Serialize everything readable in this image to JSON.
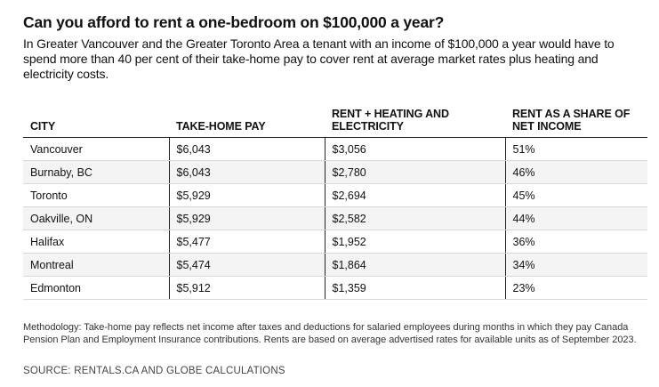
{
  "chart_data": {
    "type": "table",
    "title": "Can you afford to rent a one-bedroom on $100,000 a year?",
    "subtitle": "In Greater Vancouver and the Greater Toronto Area a tenant with an income of $100,000 a year would have to spend more than 40 per cent of their take-home pay to cover rent at average market rates plus heating and electricity costs.",
    "columns": [
      "CITY",
      "TAKE-HOME PAY",
      "RENT + HEATING AND ELECTRICITY",
      "RENT AS A SHARE OF NET INCOME"
    ],
    "rows": [
      [
        "Vancouver",
        "$6,043",
        "$3,056",
        "51%"
      ],
      [
        "Burnaby, BC",
        "$6,043",
        "$2,780",
        "46%"
      ],
      [
        "Toronto",
        "$5,929",
        "$2,694",
        "45%"
      ],
      [
        "Oakville, ON",
        "$5,929",
        "$2,582",
        "44%"
      ],
      [
        "Halifax",
        "$5,477",
        "$1,952",
        "36%"
      ],
      [
        "Montreal",
        "$5,474",
        "$1,864",
        "34%"
      ],
      [
        "Edmonton",
        "$5,912",
        "$1,359",
        "23%"
      ]
    ],
    "methodology": "Methodology: Take-home pay reflects net income after taxes and deductions for salaried employees during months in which they pay Canada Pension Plan and Employment Insurance contributions. Rents are based on average advertised rates for available units as of September 2023.",
    "source": "SOURCE: RENTALS.CA AND GLOBE CALCULATIONS"
  }
}
